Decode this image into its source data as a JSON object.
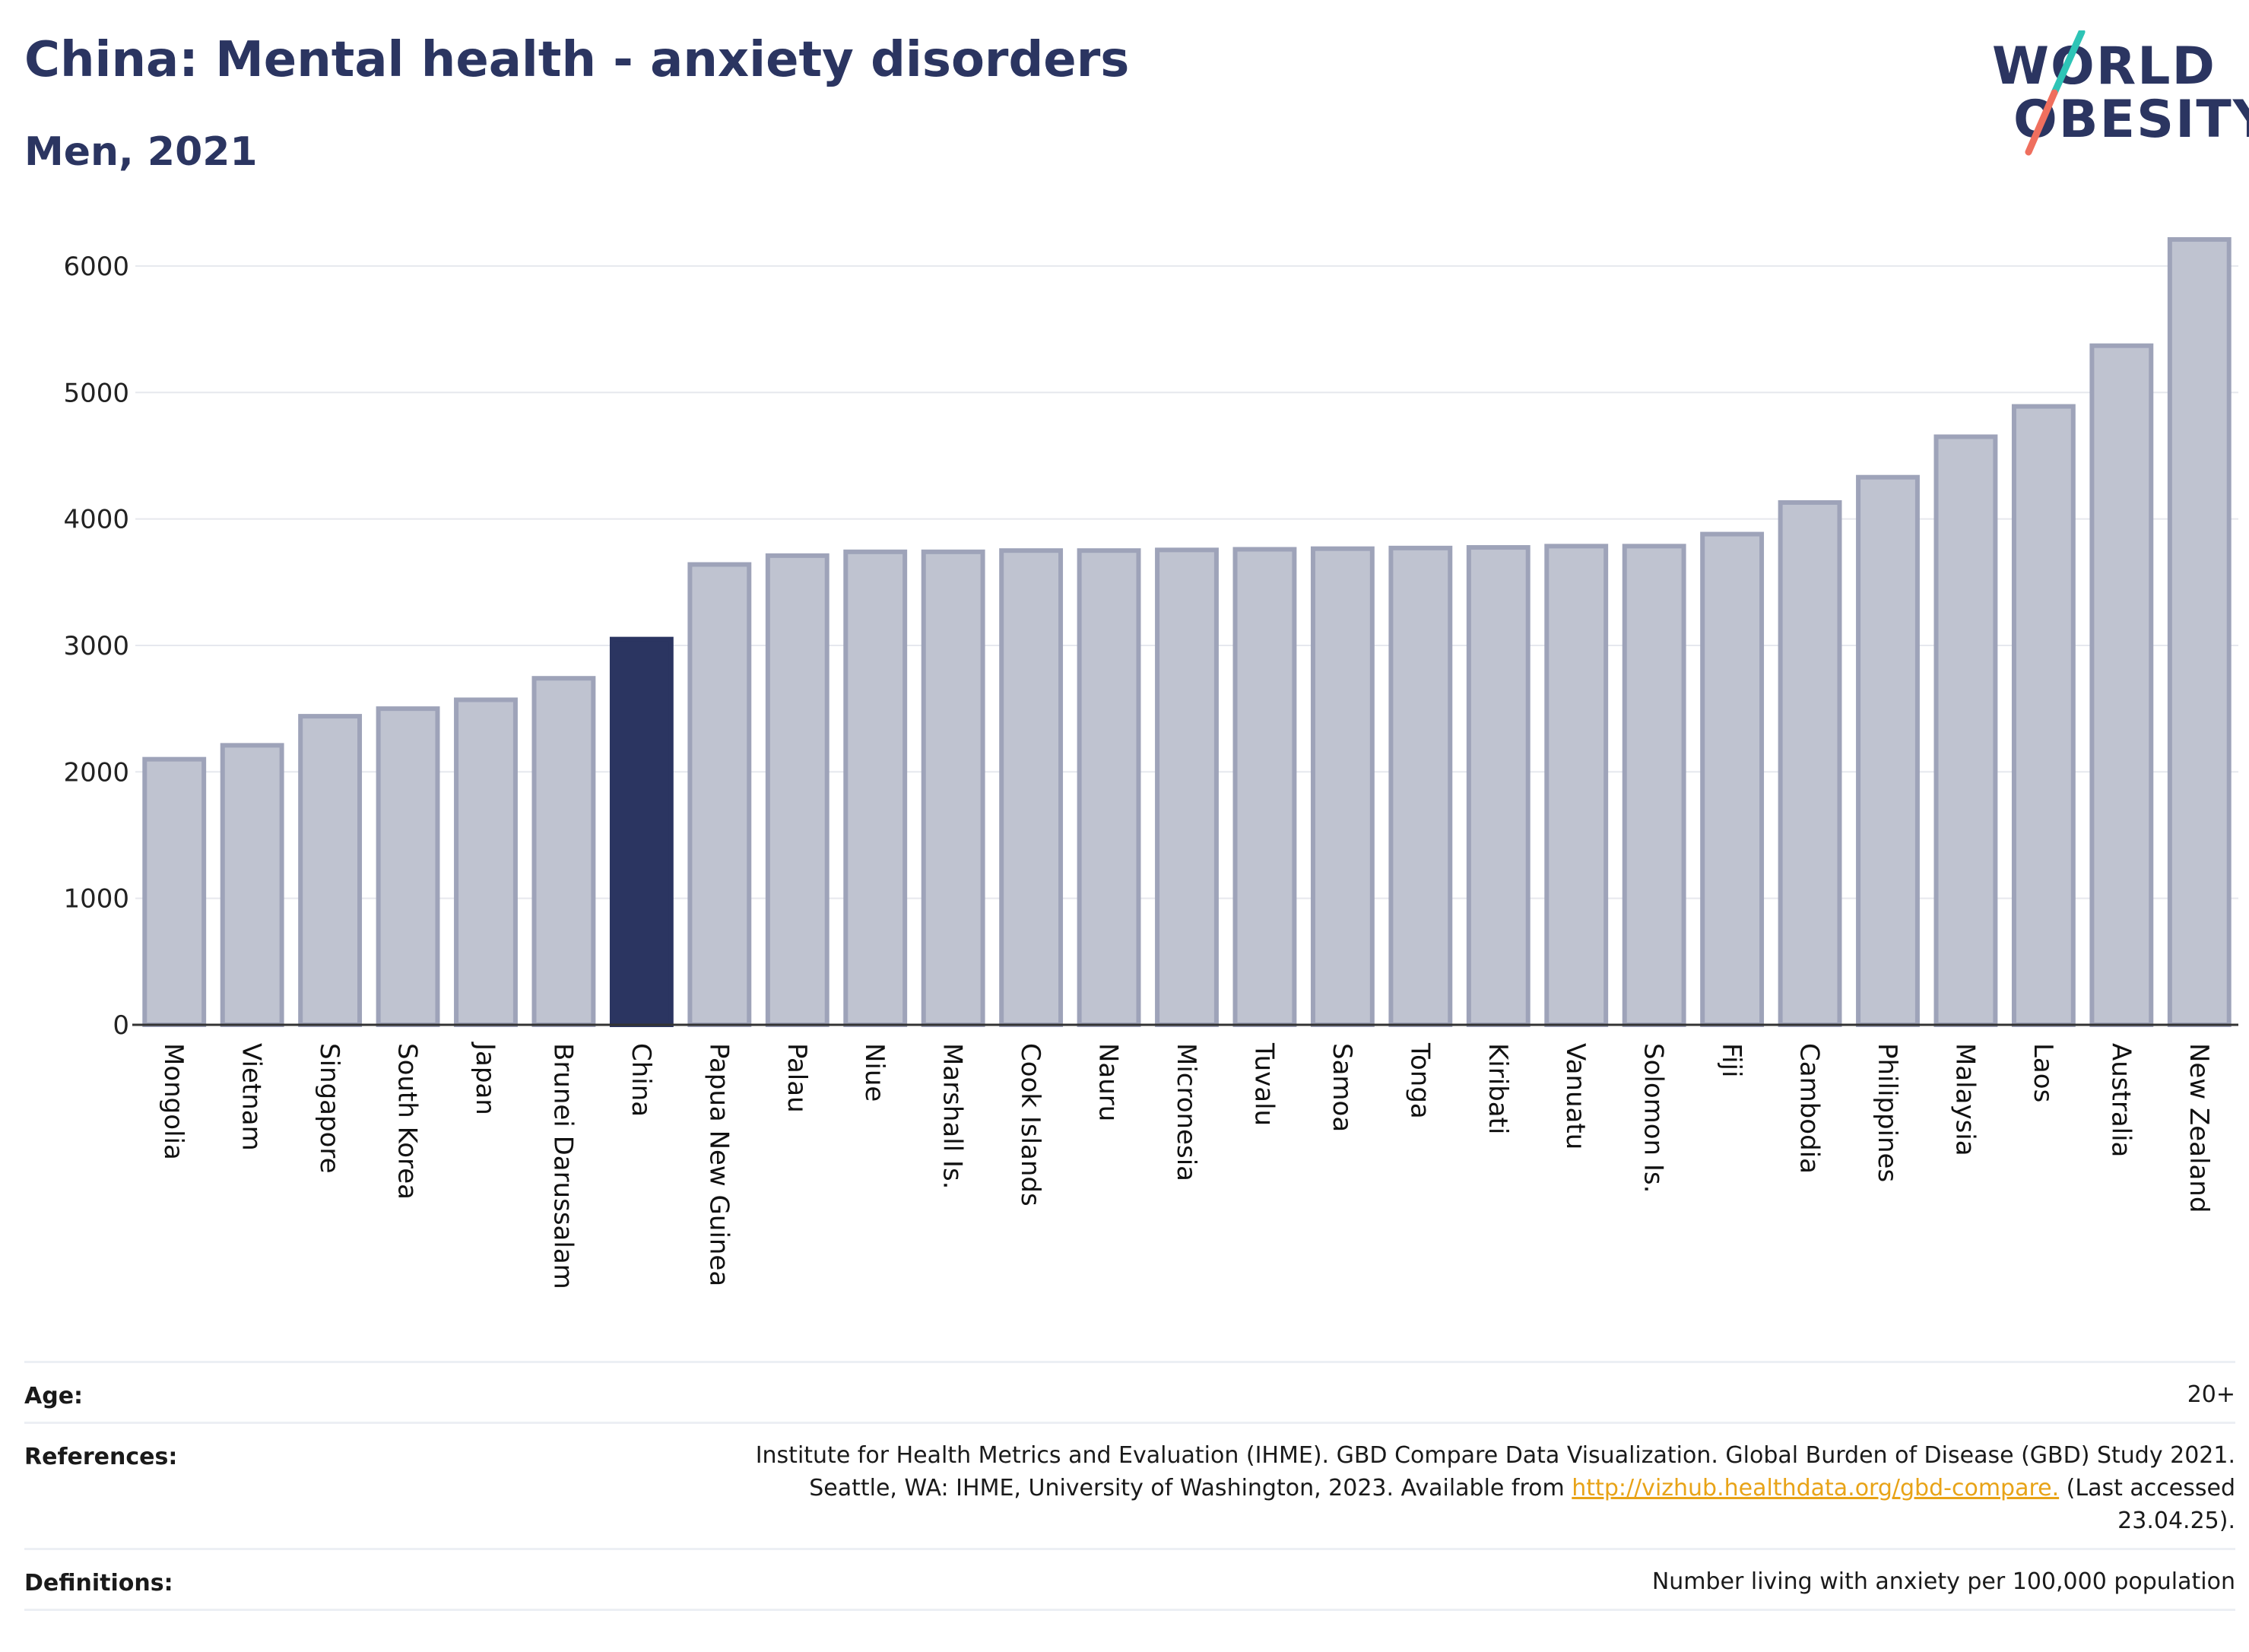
{
  "header": {
    "title": "China: Mental health - anxiety disorders",
    "subtitle": "Men, 2021"
  },
  "logo": {
    "line1": "WORLD",
    "line2": "OBESITY",
    "colors": {
      "text": "#2b3561",
      "slash_teal": "#2ec4b6",
      "slash_coral": "#ef6f5e"
    }
  },
  "chart_data": {
    "type": "bar",
    "categories": [
      "Mongolia",
      "Vietnam",
      "Singapore",
      "South Korea",
      "Japan",
      "Brunei Darussalam",
      "China",
      "Papua New Guinea",
      "Palau",
      "Niue",
      "Marshall Is.",
      "Cook Islands",
      "Nauru",
      "Micronesia",
      "Tuvalu",
      "Samoa",
      "Tonga",
      "Kiribati",
      "Vanuatu",
      "Solomon Is.",
      "Fiji",
      "Cambodia",
      "Philippines",
      "Malaysia",
      "Laos",
      "Australia",
      "New Zealand"
    ],
    "values": [
      2100,
      2210,
      2440,
      2500,
      2570,
      2740,
      3050,
      3640,
      3710,
      3740,
      3740,
      3750,
      3750,
      3755,
      3760,
      3765,
      3770,
      3775,
      3785,
      3785,
      3880,
      4130,
      4330,
      4650,
      4890,
      5370,
      6210
    ],
    "highlight": "China",
    "title": "",
    "xlabel": "",
    "ylabel": "",
    "ylim": [
      0,
      6300
    ],
    "yticks": [
      0,
      1000,
      2000,
      3000,
      4000,
      5000,
      6000
    ],
    "grid": true,
    "legend": "none",
    "colors": {
      "bar": "#bfc3d0",
      "bar_border": "#9ea3b9",
      "highlight": "#2b3561",
      "grid": "#e6e8ee",
      "axis": "#333333"
    }
  },
  "footer": {
    "age_label": "Age:",
    "age_value": "20+",
    "references_label": "References:",
    "references_text_1": "Institute for Health Metrics and Evaluation (IHME). GBD Compare Data Visualization. Global Burden of Disease (GBD) Study 2021.",
    "references_text_2": "Seattle, WA: IHME, University of Washington, 2023. Available from ",
    "references_link": "http://vizhub.healthdata.org/gbd-compare.",
    "references_text_3": " (Last accessed",
    "references_text_4": "23.04.25).",
    "definitions_label": "Definitions:",
    "definitions_value": "Number living with anxiety per 100,000 population"
  }
}
